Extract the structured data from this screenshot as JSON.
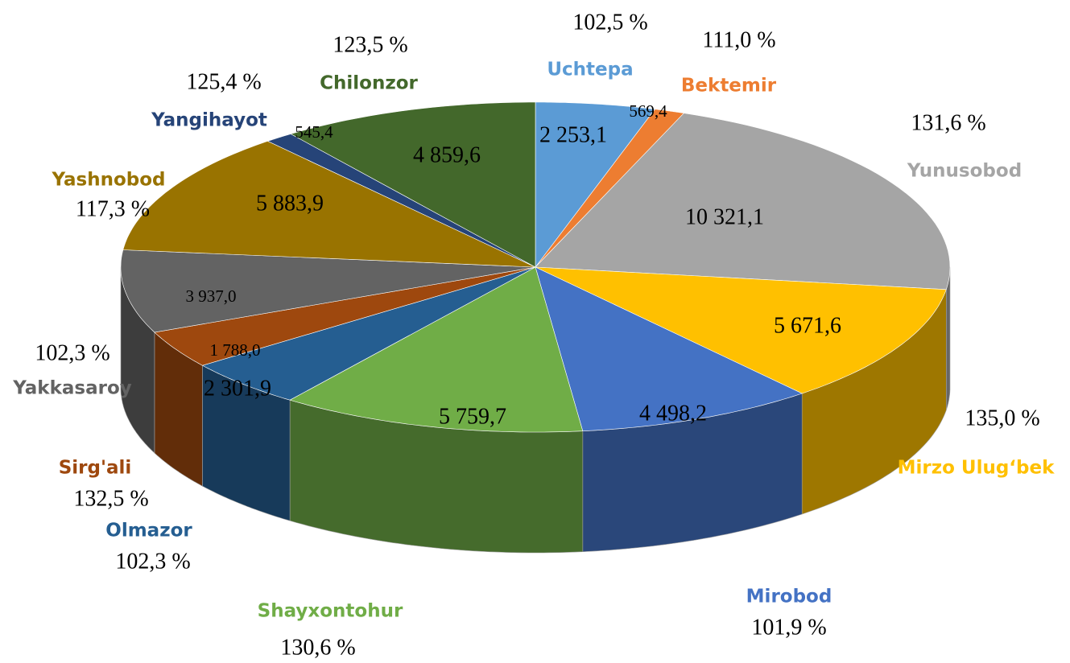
{
  "chart_data": {
    "type": "pie3d",
    "categories": [
      "Uchtepa",
      "Bektemir",
      "Yunusobod",
      "Mirzo Ulug‘bek",
      "Mirobod",
      "Shayxontohur",
      "Olmazor",
      "Sirg'ali",
      "Yakkasaroy",
      "Yashnobod",
      "Yangihayot",
      "Chilonzor"
    ],
    "values": [
      2253.1,
      569.4,
      10321.1,
      5671.6,
      4498.2,
      5759.7,
      2301.9,
      1788.0,
      3937.0,
      5883.9,
      545.4,
      4859.6
    ],
    "value_labels": [
      "2 253,1",
      "569,4",
      "10 321,1",
      "5 671,6",
      "4 498,2",
      "5 759,7",
      "2 301,9",
      "1 788,0",
      "3 937,0",
      "5 883,9",
      "545,4",
      "4 859,6"
    ],
    "growth": [
      102.5,
      111.0,
      131.6,
      135.0,
      101.9,
      130.6,
      102.3,
      132.5,
      102.3,
      117.3,
      125.4,
      123.5
    ],
    "growth_labels": [
      "102,5 %",
      "111,0 %",
      "131,6 %",
      "135,0 %",
      "101,9 %",
      "130,6 %",
      "102,3 %",
      "132,5 %",
      "102,3 %",
      "117,3 %",
      "125,4 %",
      "123,5 %"
    ],
    "colors": [
      "#5b9bd5",
      "#ed7d31",
      "#a5a5a5",
      "#ffc000",
      "#4472c4",
      "#70ad47",
      "#255e91",
      "#9e480e",
      "#636363",
      "#997300",
      "#264478",
      "#43682b"
    ]
  }
}
